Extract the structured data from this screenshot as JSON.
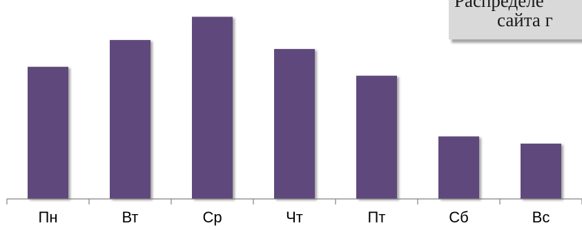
{
  "chart_data": {
    "type": "bar",
    "title_lines": [
      "Распределе",
      "сайта г"
    ],
    "categories": [
      "Пн",
      "Вт",
      "Ср",
      "Чт",
      "Пт",
      "Сб",
      "Вс"
    ],
    "values": [
      74,
      89,
      102,
      84,
      69,
      35,
      31
    ],
    "ylim": [
      0,
      106
    ],
    "bar_color": "#5e4a7c",
    "axis_color": "#808080",
    "grid": false,
    "legend": "none"
  }
}
